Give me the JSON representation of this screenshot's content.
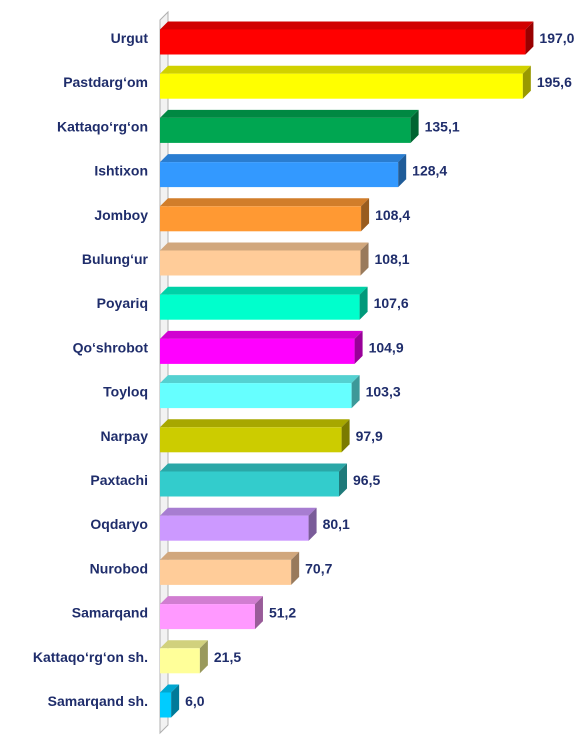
{
  "chart_data": {
    "type": "bar",
    "orientation": "horizontal",
    "style": "3d",
    "title": "",
    "xlabel": "",
    "ylabel": "",
    "xlim": [
      0,
      200
    ],
    "grid": false,
    "legend": "none",
    "categories": [
      "Urgut",
      "Pastdarg‘om",
      "Kattaqo‘rg‘on",
      "Ishtixon",
      "Jomboy",
      "Bulung‘ur",
      "Poyariq",
      "Qo‘shrobot",
      "Toyloq",
      "Narpay",
      "Paxtachi",
      "Oqdaryo",
      "Nurobod",
      "Samarqand",
      "Kattaqo‘rg‘on sh.",
      "Samarqand sh."
    ],
    "values": [
      197.0,
      195.6,
      135.1,
      128.4,
      108.4,
      108.1,
      107.6,
      104.9,
      103.3,
      97.9,
      96.5,
      80.1,
      70.7,
      51.2,
      21.5,
      6.0
    ],
    "value_labels": [
      "197,0",
      "195,6",
      "135,1",
      "128,4",
      "108,4",
      "108,1",
      "107,6",
      "104,9",
      "103,3",
      "97,9",
      "96,5",
      "80,1",
      "70,7",
      "51,2",
      "21,5",
      "6,0"
    ],
    "colors": [
      "#ff0000",
      "#ffff00",
      "#00a651",
      "#3399ff",
      "#ff9933",
      "#ffcc99",
      "#00ffcc",
      "#ff00ff",
      "#66ffff",
      "#cccc00",
      "#33cccc",
      "#cc99ff",
      "#ffcc99",
      "#ff99ff",
      "#ffff99",
      "#00ccff"
    ],
    "text_color": "#1f2d6b"
  }
}
